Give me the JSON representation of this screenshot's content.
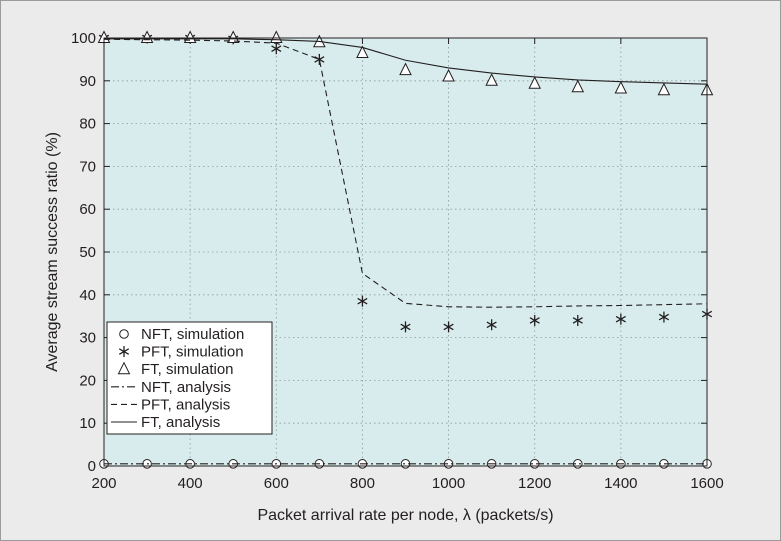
{
  "chart_data": {
    "type": "line",
    "xlabel": "Packet arrival rate per node, λ (packets/s)",
    "ylabel": "Average stream success ratio (%)",
    "xlim": [
      200,
      1600
    ],
    "ylim": [
      0,
      100
    ],
    "xticks": [
      "200",
      "400",
      "600",
      "800",
      "1000",
      "1200",
      "1400",
      "1600"
    ],
    "yticks": [
      "0",
      "10",
      "20",
      "30",
      "40",
      "50",
      "60",
      "70",
      "80",
      "90",
      "100"
    ],
    "grid": true,
    "legend_position": "bottom-left",
    "colors": {
      "plot_background": "#d9eced",
      "page_background": "#ebebeb",
      "ink": "#231f20"
    },
    "series": [
      {
        "name": "NFT, simulation",
        "style": "markers",
        "marker": "circle",
        "x": [
          200,
          300,
          400,
          500,
          600,
          700,
          800,
          900,
          1000,
          1100,
          1200,
          1300,
          1400,
          1500,
          1600
        ],
        "y": [
          0.5,
          0.5,
          0.5,
          0.5,
          0.5,
          0.5,
          0.5,
          0.5,
          0.5,
          0.5,
          0.5,
          0.5,
          0.5,
          0.5,
          0.5
        ]
      },
      {
        "name": "PFT, simulation",
        "style": "markers",
        "marker": "asterisk",
        "x": [
          200,
          300,
          400,
          500,
          600,
          700,
          800,
          900,
          1000,
          1100,
          1200,
          1300,
          1400,
          1500,
          1600
        ],
        "y": [
          100,
          100,
          100,
          99.8,
          97.5,
          95,
          38.5,
          32.5,
          32.5,
          33,
          34,
          34,
          34.3,
          34.8,
          35.5
        ]
      },
      {
        "name": "FT, simulation",
        "style": "markers",
        "marker": "triangle",
        "x": [
          200,
          300,
          400,
          500,
          600,
          700,
          800,
          900,
          1000,
          1100,
          1200,
          1300,
          1400,
          1500,
          1600
        ],
        "y": [
          100,
          100,
          100,
          100,
          100,
          99,
          96.5,
          92.5,
          91,
          90,
          89.3,
          88.5,
          88.2,
          87.8,
          87.8
        ]
      },
      {
        "name": "NFT, analysis",
        "style": "dashdot",
        "x": [
          200,
          1600
        ],
        "y": [
          0.5,
          0.5
        ]
      },
      {
        "name": "PFT, analysis",
        "style": "dashed",
        "x": [
          200,
          300,
          400,
          500,
          600,
          700,
          800,
          900,
          1000,
          1100,
          1200,
          1300,
          1400,
          1500,
          1600
        ],
        "y": [
          99.7,
          99.6,
          99.5,
          99.3,
          98.8,
          95,
          45,
          38,
          37.2,
          37.1,
          37.2,
          37.4,
          37.5,
          37.7,
          37.9
        ]
      },
      {
        "name": "FT, analysis",
        "style": "solid",
        "x": [
          200,
          300,
          400,
          500,
          600,
          700,
          800,
          900,
          1000,
          1100,
          1200,
          1300,
          1400,
          1500,
          1600
        ],
        "y": [
          99.8,
          99.8,
          99.8,
          99.8,
          99.6,
          99.2,
          97.8,
          94.8,
          93,
          91.8,
          90.9,
          90.2,
          89.8,
          89.5,
          89.2
        ]
      }
    ]
  }
}
